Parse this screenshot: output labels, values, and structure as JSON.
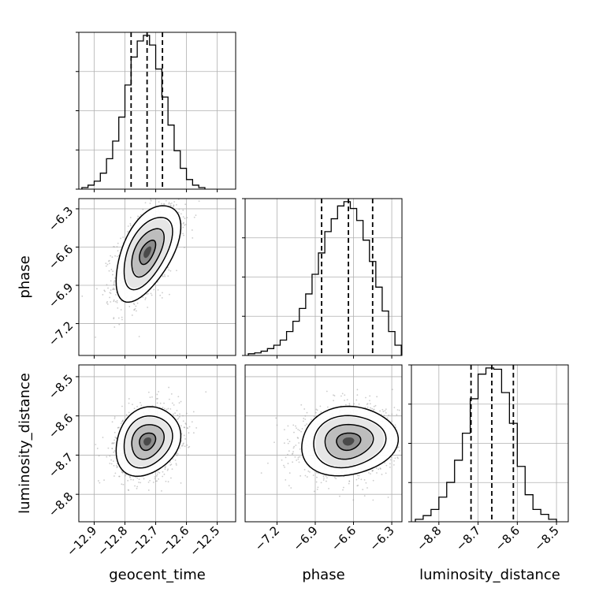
{
  "chart_data": {
    "type": "corner",
    "parameters": [
      {
        "name": "geocent_time",
        "range": [
          -12.95,
          -12.44
        ],
        "ticks": [
          -12.9,
          -12.8,
          -12.7,
          -12.6,
          -12.5
        ],
        "tick_labels": [
          "−12.9",
          "−12.8",
          "−12.7",
          "−12.6",
          "−12.5"
        ],
        "quantiles": [
          -12.78,
          -12.728,
          -12.678
        ],
        "hist_bins": [
          -12.93,
          -12.91,
          -12.89,
          -12.87,
          -12.85,
          -12.83,
          -12.81,
          -12.79,
          -12.77,
          -12.75,
          -12.73,
          -12.71,
          -12.69,
          -12.67,
          -12.65,
          -12.63,
          -12.61,
          -12.59,
          -12.57,
          -12.55
        ],
        "hist_counts": [
          2,
          5,
          10,
          20,
          38,
          60,
          90,
          130,
          165,
          185,
          192,
          180,
          150,
          115,
          80,
          48,
          26,
          12,
          5,
          2
        ]
      },
      {
        "name": "phase",
        "range": [
          -7.45,
          -6.22
        ],
        "ticks": [
          -7.2,
          -6.9,
          -6.6,
          -6.3
        ],
        "tick_labels": [
          "−7.2",
          "−6.9",
          "−6.6",
          "−6.3"
        ],
        "quantiles": [
          -6.85,
          -6.64,
          -6.45
        ],
        "hist_bins": [
          -7.4,
          -7.35,
          -7.3,
          -7.25,
          -7.2,
          -7.15,
          -7.1,
          -7.05,
          -7.0,
          -6.95,
          -6.9,
          -6.85,
          -6.8,
          -6.75,
          -6.7,
          -6.65,
          -6.6,
          -6.55,
          -6.5,
          -6.45,
          -6.4,
          -6.35,
          -6.3,
          -6.25
        ],
        "hist_counts": [
          2,
          3,
          5,
          8,
          12,
          18,
          28,
          40,
          55,
          72,
          95,
          120,
          145,
          160,
          175,
          180,
          172,
          158,
          135,
          110,
          80,
          52,
          28,
          12
        ]
      },
      {
        "name": "luminosity_distance",
        "range": [
          -8.87,
          -8.47
        ],
        "ticks": [
          -8.8,
          -8.7,
          -8.6,
          -8.5
        ],
        "tick_labels": [
          "−8.8",
          "−8.7",
          "−8.6",
          "−8.5"
        ],
        "quantiles": [
          -8.718,
          -8.665,
          -8.61
        ],
        "hist_bins": [
          -8.85,
          -8.83,
          -8.81,
          -8.79,
          -8.77,
          -8.75,
          -8.73,
          -8.71,
          -8.69,
          -8.67,
          -8.65,
          -8.63,
          -8.61,
          -8.59,
          -8.57,
          -8.55,
          -8.53,
          -8.51
        ],
        "hist_counts": [
          2,
          5,
          10,
          20,
          32,
          50,
          72,
          100,
          120,
          125,
          124,
          105,
          80,
          45,
          22,
          10,
          6,
          2
        ]
      }
    ],
    "pair_stats": {
      "1_0": {
        "mean": [
          -12.727,
          -6.64
        ],
        "sd": [
          0.05,
          0.18
        ],
        "rho": 0.55
      },
      "2_0": {
        "mean": [
          -12.727,
          -8.665
        ],
        "sd": [
          0.05,
          0.042
        ],
        "rho": 0.2
      },
      "2_1": {
        "mean": [
          -6.64,
          -8.665
        ],
        "sd": [
          0.18,
          0.042
        ],
        "rho": 0.1
      }
    },
    "grid": true,
    "contour_levels_sigma": [
      0.5,
      1.0,
      1.5,
      2.0
    ]
  }
}
